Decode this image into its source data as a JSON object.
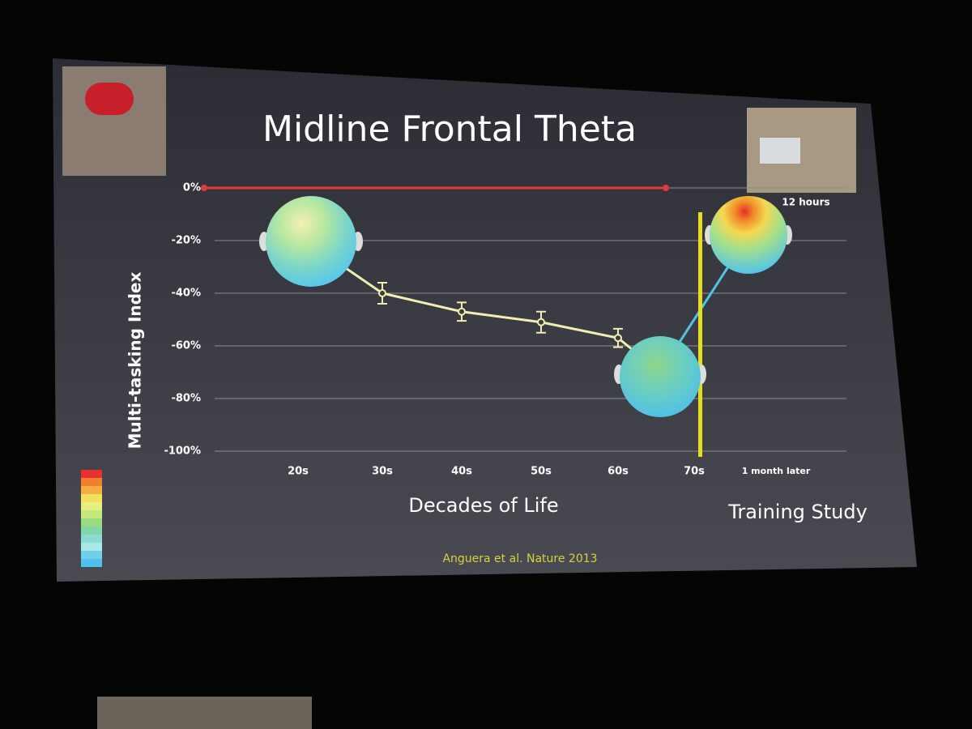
{
  "chart_data": {
    "type": "line",
    "title": "Midline Frontal Theta",
    "y_label": "Multi-tasking Index",
    "x_label": "Decades of Life",
    "x_label_right": "Training Study",
    "photo_caption": "12 hours",
    "citation": "Anguera et al. Nature 2013",
    "categories": [
      "20s",
      "30s",
      "40s",
      "50s",
      "60s",
      "70s",
      "1 month later"
    ],
    "series": [
      {
        "color": "#f2eeb0",
        "values": [
          -18,
          -40,
          -47,
          -51,
          -57,
          -70,
          null
        ],
        "errors": [
          null,
          4,
          3.5,
          4,
          3.5,
          null,
          null
        ]
      },
      {
        "color": "#4fc3e8",
        "values": [
          null,
          null,
          null,
          null,
          null,
          -70,
          -18
        ]
      }
    ],
    "reference_line": {
      "value": 0,
      "color": "#e03a3a"
    },
    "ylim": [
      -100,
      0
    ],
    "yticks": [
      {
        "value": 0,
        "label": "0%"
      },
      {
        "value": -20,
        "label": "-20%"
      },
      {
        "value": -40,
        "label": "-40%"
      },
      {
        "value": -60,
        "label": "-60%"
      },
      {
        "value": -80,
        "label": "-80%"
      },
      {
        "value": -100,
        "label": "-100%"
      }
    ],
    "grid": true
  }
}
